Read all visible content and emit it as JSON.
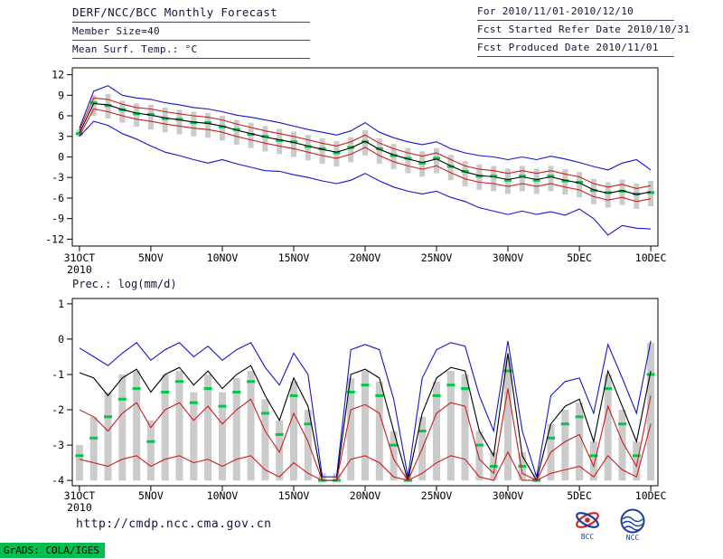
{
  "header": {
    "left_lines": [
      "DERF/NCC/BCC Monthly Forecast",
      "Member Size=40",
      "Mean Surf. Temp.: °C"
    ],
    "right_lines": [
      "For 2010/11/01-2010/12/10",
      "Fcst Started Refer Date 2010/10/31",
      "Fcst Produced Date 2010/11/01"
    ]
  },
  "panels": {
    "temp_label": "Mean Surf. Temp.: °C",
    "precip_label": "Prec.: log(mm/d)"
  },
  "footer": {
    "url": "http://cmdp.ncc.cma.gov.cn",
    "stamp": "GrADS: COLA/IGES",
    "logos": [
      {
        "label": "BCC"
      },
      {
        "label": "NCC"
      }
    ]
  },
  "colors": {
    "envelope": "#1515cc",
    "mean": "#000000",
    "quartile": "#cc1f1f",
    "median": "#00c84b",
    "spread_bar": "#cbcbcb",
    "frame": "#000000",
    "text": "#14143c",
    "stamp_bg": "#00bf4f"
  },
  "chart_data": [
    {
      "type": "line",
      "title": "Mean Surf. Temp.: °C",
      "grid": false,
      "legend": "none",
      "ylim": [
        -12,
        12
      ],
      "yticks": [
        12,
        9,
        6,
        3,
        0,
        -3,
        -6,
        -9,
        -12
      ],
      "xlim": [
        0,
        40
      ],
      "xtick_positions": [
        0,
        5,
        10,
        15,
        20,
        25,
        30,
        35,
        40
      ],
      "xtick_labels": [
        "31OCT",
        "5NOV",
        "10NOV",
        "15NOV",
        "20NOV",
        "25NOV",
        "30NOV",
        "5DEC",
        "10DEC"
      ],
      "x_year": "2010",
      "series": [
        {
          "name": "ensemble-max",
          "role": "envelope",
          "values": [
            4.2,
            9.6,
            10.4,
            9.0,
            8.6,
            8.4,
            7.9,
            7.6,
            7.2,
            7.0,
            6.6,
            6.1,
            5.8,
            5.4,
            5.0,
            4.5,
            4.0,
            3.6,
            3.2,
            3.8,
            5.0,
            3.6,
            2.8,
            2.2,
            1.8,
            2.2,
            1.2,
            0.6,
            0.2,
            0.0,
            -0.4,
            0.0,
            -0.4,
            0.1,
            -0.3,
            -0.8,
            -1.4,
            -1.9,
            -0.9,
            -0.4,
            -1.9
          ]
        },
        {
          "name": "upper-quartile",
          "role": "quartile",
          "values": [
            3.9,
            8.6,
            8.4,
            7.7,
            7.2,
            7.0,
            6.6,
            6.3,
            6.0,
            5.8,
            5.4,
            4.8,
            4.3,
            3.8,
            3.4,
            3.0,
            2.5,
            2.0,
            1.6,
            2.2,
            3.2,
            2.0,
            1.2,
            0.6,
            0.1,
            0.6,
            -0.4,
            -1.3,
            -1.8,
            -2.0,
            -2.4,
            -2.0,
            -2.4,
            -2.0,
            -2.5,
            -2.9,
            -3.9,
            -4.4,
            -4.0,
            -4.6,
            -4.2
          ]
        },
        {
          "name": "ensemble-mean",
          "role": "mean",
          "values": [
            3.5,
            7.8,
            7.6,
            6.9,
            6.4,
            6.1,
            5.7,
            5.4,
            5.1,
            4.9,
            4.5,
            3.9,
            3.4,
            2.9,
            2.5,
            2.1,
            1.6,
            1.1,
            0.7,
            1.3,
            2.3,
            1.1,
            0.3,
            -0.3,
            -0.8,
            -0.3,
            -1.3,
            -2.2,
            -2.7,
            -2.9,
            -3.3,
            -2.9,
            -3.3,
            -2.9,
            -3.4,
            -3.8,
            -4.8,
            -5.3,
            -4.9,
            -5.5,
            -5.1
          ]
        },
        {
          "name": "lower-quartile",
          "role": "quartile",
          "values": [
            3.1,
            7.0,
            6.6,
            6.0,
            5.5,
            5.2,
            4.8,
            4.5,
            4.2,
            4.0,
            3.6,
            3.0,
            2.5,
            2.0,
            1.6,
            1.2,
            0.7,
            0.2,
            -0.2,
            0.4,
            1.4,
            0.2,
            -0.7,
            -1.3,
            -1.8,
            -1.3,
            -2.3,
            -3.2,
            -3.7,
            -3.9,
            -4.3,
            -3.9,
            -4.3,
            -3.9,
            -4.4,
            -4.8,
            -5.8,
            -6.3,
            -5.9,
            -6.5,
            -6.1
          ]
        },
        {
          "name": "ensemble-min",
          "role": "envelope",
          "values": [
            3.0,
            5.2,
            4.6,
            3.4,
            2.6,
            1.6,
            0.7,
            0.2,
            -0.4,
            -0.9,
            -0.4,
            -1.0,
            -1.5,
            -2.0,
            -2.1,
            -2.6,
            -3.0,
            -3.5,
            -3.9,
            -3.4,
            -2.4,
            -3.5,
            -4.4,
            -5.0,
            -5.4,
            -5.0,
            -5.9,
            -6.5,
            -7.4,
            -7.9,
            -8.4,
            -7.9,
            -8.4,
            -8.0,
            -8.5,
            -7.6,
            -9.0,
            -11.4,
            -10.0,
            -10.4,
            -10.5
          ]
        }
      ],
      "median_dashes": {
        "role": "median",
        "values": [
          3.4,
          7.9,
          7.5,
          6.9,
          6.3,
          6.2,
          5.6,
          5.5,
          5.0,
          5.0,
          4.4,
          4.0,
          3.3,
          3.0,
          2.4,
          2.2,
          1.5,
          1.2,
          0.6,
          1.4,
          2.2,
          1.2,
          0.2,
          -0.2,
          -0.9,
          -0.2,
          -1.4,
          -2.1,
          -2.8,
          -2.8,
          -3.4,
          -2.8,
          -3.4,
          -2.8,
          -3.5,
          -3.7,
          -4.9,
          -5.2,
          -5.0,
          -5.4,
          -5.2
        ]
      },
      "spread_bars": {
        "role": "spread_bar",
        "high": [
          4.0,
          9.0,
          9.2,
          8.2,
          7.8,
          7.6,
          7.2,
          6.9,
          6.6,
          6.4,
          6.0,
          5.4,
          5.0,
          4.5,
          4.1,
          3.7,
          3.2,
          2.7,
          2.3,
          2.9,
          3.9,
          2.7,
          1.9,
          1.3,
          0.8,
          1.3,
          0.3,
          -0.6,
          -1.1,
          -1.3,
          -1.7,
          -1.3,
          -1.7,
          -1.3,
          -1.8,
          -2.2,
          -3.2,
          -3.7,
          -3.3,
          -3.9,
          -3.5
        ],
        "low": [
          3.0,
          6.0,
          5.6,
          5.0,
          4.4,
          4.0,
          3.6,
          3.3,
          3.0,
          2.8,
          2.4,
          1.8,
          1.3,
          0.8,
          0.4,
          0.0,
          -0.5,
          -1.0,
          -1.4,
          -0.8,
          0.2,
          -1.0,
          -1.8,
          -2.4,
          -2.9,
          -2.4,
          -3.4,
          -4.3,
          -4.8,
          -5.0,
          -5.4,
          -5.0,
          -5.4,
          -5.0,
          -5.5,
          -5.9,
          -6.9,
          -7.4,
          -7.0,
          -7.6,
          -7.2
        ]
      }
    },
    {
      "type": "line",
      "title": "Prec.: log(mm/d)",
      "grid": false,
      "legend": "none",
      "ylim": [
        -4,
        1
      ],
      "yticks": [
        1,
        0,
        -1,
        -2,
        -3,
        -4
      ],
      "xlim": [
        0,
        40
      ],
      "xtick_positions": [
        0,
        5,
        10,
        15,
        20,
        25,
        30,
        35,
        40
      ],
      "xtick_labels": [
        "31OCT",
        "5NOV",
        "10NOV",
        "15NOV",
        "20NOV",
        "25NOV",
        "30NOV",
        "5DEC",
        "10DEC"
      ],
      "x_year": "2010",
      "series": [
        {
          "name": "ensemble-max",
          "role": "envelope",
          "values": [
            -0.25,
            -0.5,
            -0.75,
            -0.4,
            -0.1,
            -0.6,
            -0.3,
            -0.1,
            -0.5,
            -0.2,
            -0.6,
            -0.3,
            -0.1,
            -0.8,
            -1.3,
            -0.4,
            -1.0,
            -3.9,
            -3.9,
            -0.3,
            -0.15,
            -0.3,
            -1.7,
            -3.9,
            -1.1,
            -0.3,
            -0.1,
            -0.2,
            -1.6,
            -2.6,
            -0.05,
            -2.6,
            -3.9,
            -1.6,
            -1.2,
            -1.1,
            -2.1,
            -0.15,
            -1.1,
            -2.1,
            -0.05
          ]
        },
        {
          "name": "ensemble-mean",
          "role": "mean",
          "values": [
            -0.95,
            -1.1,
            -1.6,
            -1.1,
            -0.85,
            -1.5,
            -1.0,
            -0.8,
            -1.3,
            -0.9,
            -1.4,
            -1.0,
            -0.75,
            -1.6,
            -2.3,
            -1.1,
            -1.9,
            -4.0,
            -4.0,
            -1.0,
            -0.85,
            -1.1,
            -2.6,
            -4.0,
            -2.1,
            -1.1,
            -0.8,
            -0.9,
            -2.6,
            -3.3,
            -0.4,
            -3.3,
            -4.0,
            -2.4,
            -1.9,
            -1.7,
            -2.9,
            -0.9,
            -1.9,
            -2.9,
            -0.9
          ]
        },
        {
          "name": "upper-quartile",
          "role": "quartile",
          "values": [
            -2.0,
            -2.2,
            -2.6,
            -2.1,
            -1.8,
            -2.5,
            -2.0,
            -1.8,
            -2.3,
            -1.9,
            -2.4,
            -2.0,
            -1.7,
            -2.6,
            -3.2,
            -2.1,
            -2.9,
            -4.0,
            -4.0,
            -2.0,
            -1.85,
            -2.1,
            -3.4,
            -4.0,
            -3.1,
            -2.1,
            -1.8,
            -1.9,
            -3.4,
            -3.8,
            -1.4,
            -3.8,
            -4.0,
            -3.2,
            -2.9,
            -2.7,
            -3.6,
            -1.9,
            -2.9,
            -3.6,
            -1.6
          ]
        },
        {
          "name": "lower-quartile",
          "role": "quartile",
          "values": [
            -3.4,
            -3.5,
            -3.6,
            -3.4,
            -3.3,
            -3.6,
            -3.4,
            -3.3,
            -3.5,
            -3.4,
            -3.6,
            -3.4,
            -3.3,
            -3.7,
            -3.9,
            -3.5,
            -3.8,
            -4.0,
            -4.0,
            -3.4,
            -3.3,
            -3.5,
            -3.9,
            -4.0,
            -3.8,
            -3.5,
            -3.3,
            -3.4,
            -3.9,
            -4.0,
            -3.2,
            -4.0,
            -4.0,
            -3.8,
            -3.7,
            -3.6,
            -3.9,
            -3.3,
            -3.7,
            -3.9,
            -2.4
          ]
        }
      ],
      "median_dashes": {
        "role": "median",
        "values": [
          -3.3,
          -2.8,
          -2.2,
          -1.7,
          -1.4,
          -2.9,
          -1.5,
          -1.2,
          -1.8,
          -1.4,
          -1.9,
          -1.5,
          -1.2,
          -2.1,
          -2.7,
          -1.6,
          -2.4,
          -4.0,
          -4.0,
          -1.5,
          -1.3,
          -1.6,
          -3.0,
          -4.0,
          -2.6,
          -1.6,
          -1.3,
          -1.4,
          -3.0,
          -3.6,
          -0.9,
          -3.6,
          -4.0,
          -2.8,
          -2.4,
          -2.2,
          -3.3,
          -1.4,
          -2.4,
          -3.3,
          -1.0
        ]
      },
      "spread_bars": {
        "role": "spread_bar",
        "high": [
          -3.0,
          -2.2,
          -1.5,
          -1.0,
          -0.9,
          -2.3,
          -1.0,
          -0.9,
          -1.5,
          -1.0,
          -1.5,
          -1.1,
          -0.9,
          -1.7,
          -2.3,
          -1.2,
          -2.0,
          -3.8,
          -3.8,
          -1.1,
          -0.9,
          -1.2,
          -2.6,
          -3.8,
          -2.2,
          -1.2,
          -0.9,
          -1.0,
          -2.6,
          -3.2,
          -0.5,
          -3.2,
          -3.8,
          -2.4,
          -2.0,
          -1.8,
          -2.9,
          -1.0,
          -2.0,
          -2.9,
          -0.1
        ],
        "low": [
          -4.0,
          -4.0,
          -4.0,
          -4.0,
          -4.0,
          -4.0,
          -4.0,
          -4.0,
          -4.0,
          -4.0,
          -4.0,
          -4.0,
          -4.0,
          -4.0,
          -4.0,
          -4.0,
          -4.0,
          -4.0,
          -4.0,
          -4.0,
          -4.0,
          -4.0,
          -4.0,
          -4.0,
          -4.0,
          -4.0,
          -4.0,
          -4.0,
          -4.0,
          -4.0,
          -4.0,
          -4.0,
          -4.0,
          -4.0,
          -4.0,
          -4.0,
          -4.0,
          -4.0,
          -4.0,
          -4.0,
          -4.0
        ]
      }
    }
  ]
}
